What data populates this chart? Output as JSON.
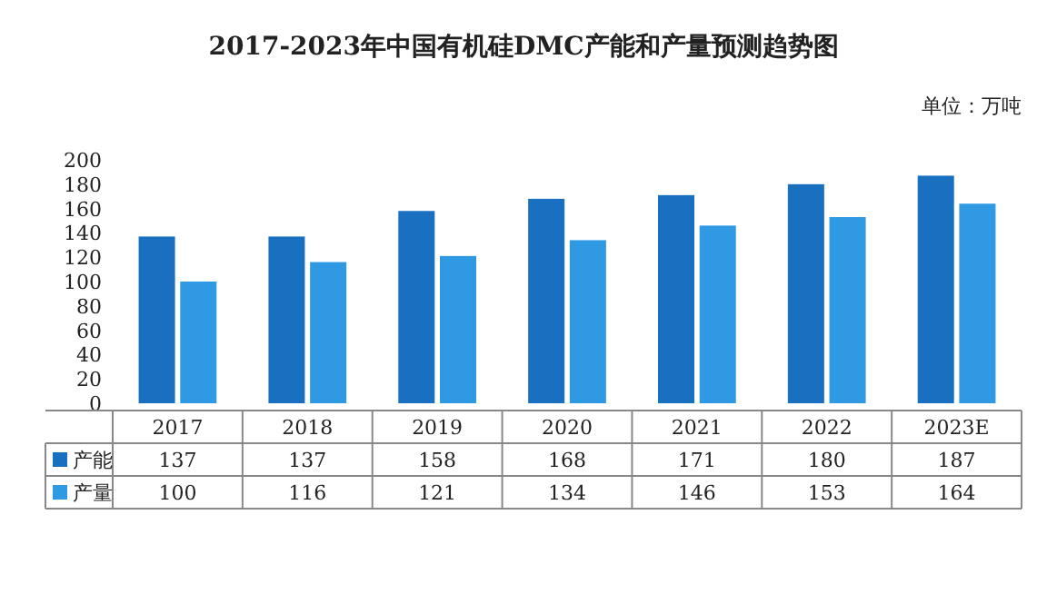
{
  "chart_data": {
    "type": "bar",
    "title": "2017-2023年中国有机硅DMC产能和产量预测趋势图",
    "annotations": [
      "单位：万吨"
    ],
    "categories": [
      "2017",
      "2018",
      "2019",
      "2020",
      "2021",
      "2022",
      "2023E"
    ],
    "series": [
      {
        "name": "产能",
        "color": "#1a70c0",
        "values": [
          137,
          137,
          158,
          168,
          171,
          180,
          187
        ]
      },
      {
        "name": "产量",
        "color": "#2f9ae3",
        "values": [
          100,
          116,
          121,
          134,
          146,
          153,
          164
        ]
      }
    ],
    "ylim": [
      0,
      200
    ],
    "yticks": [
      0,
      20,
      40,
      60,
      80,
      100,
      120,
      140,
      160,
      180,
      200
    ],
    "data_labels": true,
    "legend": "bottom",
    "grid": false
  }
}
